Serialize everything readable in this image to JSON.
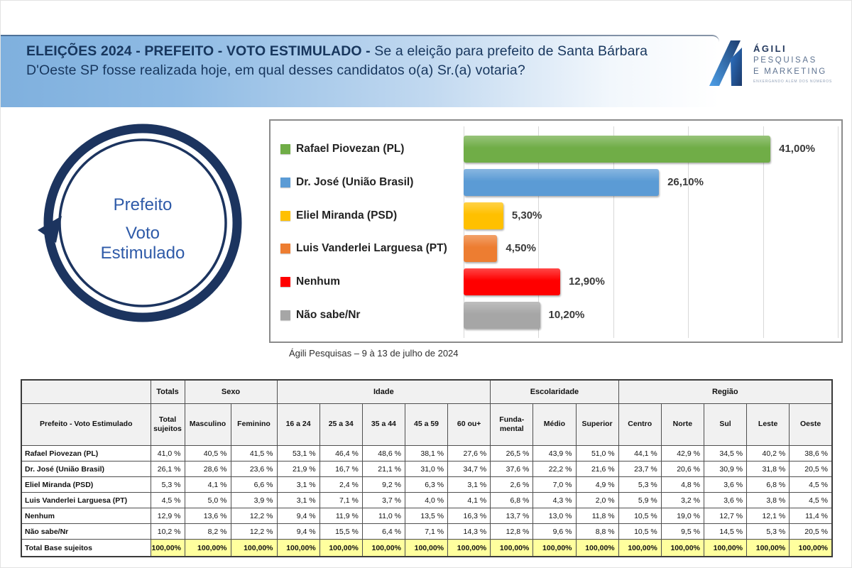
{
  "header": {
    "title_bold": "ELEIÇÕES 2024 - PREFEITO - VOTO ESTIMULADO - ",
    "title_rest": "Se a eleição para prefeito de Santa Bárbara D'Oeste SP fosse realizada hoje, em qual desses candidatos o(a) Sr.(a) votaria?"
  },
  "logo": {
    "line1": "ÁGILI",
    "line2": "PESQUISAS",
    "line3": "E MARKETING",
    "tagline": "ENXERGANDO ALÉM DOS NÚMEROS"
  },
  "badge": {
    "line1": "Prefeito",
    "line2": "Voto",
    "line3": "Estimulado"
  },
  "chart_data": {
    "type": "bar",
    "orientation": "horizontal",
    "categories": [
      "Rafael Piovezan (PL)",
      "Dr. José (União Brasil)",
      "Eliel Miranda (PSD)",
      "Luis Vanderlei Larguesa (PT)",
      "Nenhum",
      "Não sabe/Nr"
    ],
    "values": [
      41.0,
      26.1,
      5.3,
      4.5,
      12.9,
      10.2
    ],
    "value_labels": [
      "41,00%",
      "26,10%",
      "5,30%",
      "4,50%",
      "12,90%",
      "10,20%"
    ],
    "colors": [
      "#70AD47",
      "#5B9BD5",
      "#FFC000",
      "#ED7D31",
      "#FF0000",
      "#A6A6A6"
    ],
    "xlim": [
      0,
      50
    ],
    "gridline_step": 10,
    "grid": true,
    "legend_position": "left",
    "caption": "Ágili Pesquisas – 9 à 13 de julho de 2024"
  },
  "table": {
    "corner_label": "",
    "title_cell": "Prefeito - Voto Estimulado",
    "groups": [
      {
        "label": "Totals",
        "span": 1
      },
      {
        "label": "Sexo",
        "span": 2
      },
      {
        "label": "Idade",
        "span": 5
      },
      {
        "label": "Escolaridade",
        "span": 3
      },
      {
        "label": "Região",
        "span": 5
      }
    ],
    "columns": [
      "Total sujeitos",
      "Masculino",
      "Feminino",
      "16 a 24",
      "25 a 34",
      "35 a 44",
      "45 a 59",
      "60 ou+",
      "Funda­mental",
      "Médio",
      "Superior",
      "Centro",
      "Norte",
      "Sul",
      "Leste",
      "Oeste"
    ],
    "rows": [
      {
        "label": "Rafael Piovezan (PL)",
        "values": [
          "41,0 %",
          "40,5 %",
          "41,5 %",
          "53,1 %",
          "46,4 %",
          "48,6 %",
          "38,1 %",
          "27,6 %",
          "26,5 %",
          "43,9 %",
          "51,0 %",
          "44,1 %",
          "42,9 %",
          "34,5 %",
          "40,2 %",
          "38,6 %"
        ]
      },
      {
        "label": "Dr. José (União Brasil)",
        "values": [
          "26,1 %",
          "28,6 %",
          "23,6 %",
          "21,9 %",
          "16,7 %",
          "21,1 %",
          "31,0 %",
          "34,7 %",
          "37,6 %",
          "22,2 %",
          "21,6 %",
          "23,7 %",
          "20,6 %",
          "30,9 %",
          "31,8 %",
          "20,5 %"
        ]
      },
      {
        "label": "Eliel Miranda (PSD)",
        "values": [
          "5,3 %",
          "4,1 %",
          "6,6 %",
          "3,1 %",
          "2,4 %",
          "9,2 %",
          "6,3 %",
          "3,1 %",
          "2,6 %",
          "7,0 %",
          "4,9 %",
          "5,3 %",
          "4,8 %",
          "3,6 %",
          "6,8 %",
          "4,5 %"
        ]
      },
      {
        "label": "Luis Vanderlei Larguesa (PT)",
        "values": [
          "4,5 %",
          "5,0 %",
          "3,9 %",
          "3,1 %",
          "7,1 %",
          "3,7 %",
          "4,0 %",
          "4,1 %",
          "6,8 %",
          "4,3 %",
          "2,0 %",
          "5,9 %",
          "3,2 %",
          "3,6 %",
          "3,8 %",
          "4,5 %"
        ]
      },
      {
        "label": "Nenhum",
        "values": [
          "12,9 %",
          "13,6 %",
          "12,2 %",
          "9,4 %",
          "11,9 %",
          "11,0 %",
          "13,5 %",
          "16,3 %",
          "13,7 %",
          "13,0 %",
          "11,8 %",
          "10,5 %",
          "19,0 %",
          "12,7 %",
          "12,1 %",
          "11,4 %"
        ]
      },
      {
        "label": "Não sabe/Nr",
        "values": [
          "10,2 %",
          "8,2 %",
          "12,2 %",
          "9,4 %",
          "15,5 %",
          "6,4 %",
          "7,1 %",
          "14,3 %",
          "12,8 %",
          "9,6 %",
          "8,8 %",
          "10,5 %",
          "9,5 %",
          "14,5 %",
          "5,3 %",
          "20,5 %"
        ]
      }
    ],
    "total_row": {
      "label": "Total Base sujeitos",
      "values": [
        "100,00%",
        "100,00%",
        "100,00%",
        "100,00%",
        "100,00%",
        "100,00%",
        "100,00%",
        "100,00%",
        "100,00%",
        "100,00%",
        "100,00%",
        "100,00%",
        "100,00%",
        "100,00%",
        "100,00%",
        "100,00%"
      ]
    }
  },
  "colors": {
    "band_blue": "#7FB0DE",
    "title_navy": "#17365D",
    "badge_ring": "#1C345F",
    "badge_text": "#2E5AA8",
    "total_row_bg": "#FFFF9E"
  }
}
